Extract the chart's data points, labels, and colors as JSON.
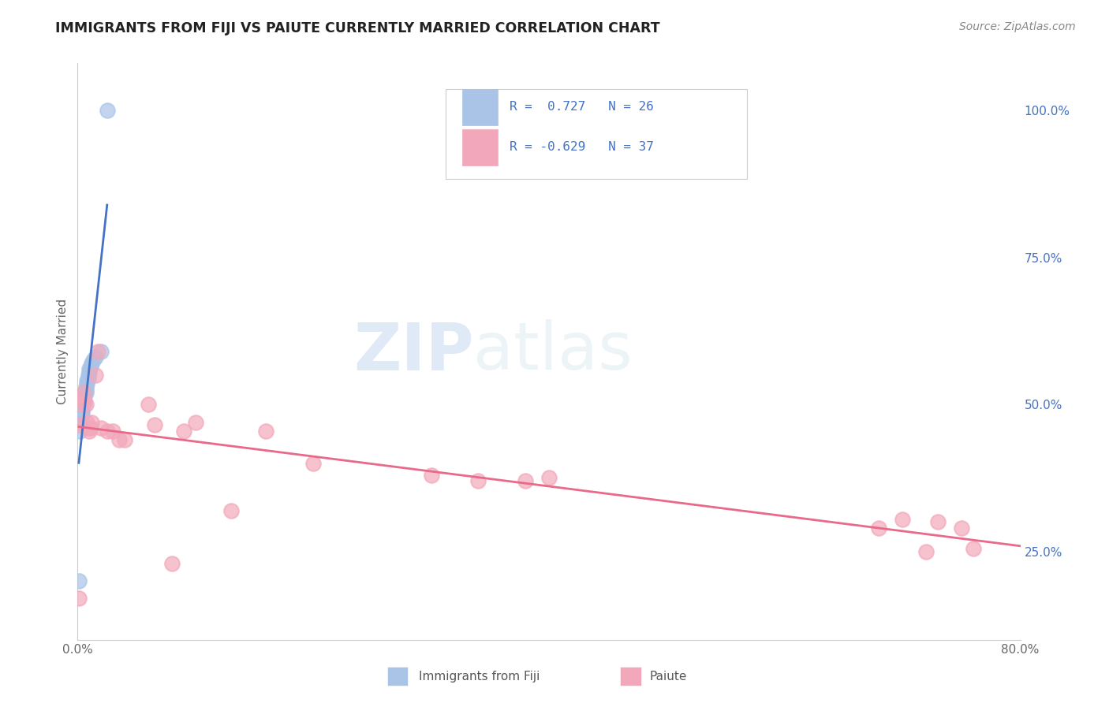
{
  "title": "IMMIGRANTS FROM FIJI VS PAIUTE CURRENTLY MARRIED CORRELATION CHART",
  "source_text": "Source: ZipAtlas.com",
  "ylabel": "Currently Married",
  "xlim": [
    0.0,
    0.8
  ],
  "ylim": [
    0.1,
    1.08
  ],
  "ytick_right_values": [
    0.25,
    0.5,
    0.75,
    1.0
  ],
  "ytick_right_labels": [
    "25.0%",
    "50.0%",
    "75.0%",
    "100.0%"
  ],
  "series_names": [
    "Immigrants from Fiji",
    "Paiute"
  ],
  "fiji_color": "#aac4e8",
  "paiute_color": "#f2a8ba",
  "fiji_line_color": "#4472c4",
  "paiute_line_color": "#e8698a",
  "background_color": "#ffffff",
  "grid_color": "#d8d8d8",
  "fiji_x": [
    0.001,
    0.002,
    0.003,
    0.003,
    0.004,
    0.004,
    0.005,
    0.005,
    0.005,
    0.006,
    0.006,
    0.007,
    0.007,
    0.007,
    0.008,
    0.008,
    0.009,
    0.009,
    0.01,
    0.01,
    0.011,
    0.012,
    0.013,
    0.015,
    0.02,
    0.025
  ],
  "fiji_y": [
    0.2,
    0.455,
    0.47,
    0.48,
    0.485,
    0.49,
    0.5,
    0.505,
    0.51,
    0.515,
    0.52,
    0.52,
    0.525,
    0.53,
    0.535,
    0.54,
    0.545,
    0.55,
    0.555,
    0.56,
    0.565,
    0.57,
    0.575,
    0.58,
    0.59,
    1.0
  ],
  "paiute_x": [
    0.001,
    0.002,
    0.003,
    0.004,
    0.005,
    0.006,
    0.007,
    0.008,
    0.009,
    0.01,
    0.011,
    0.012,
    0.015,
    0.017,
    0.02,
    0.025,
    0.03,
    0.035,
    0.04,
    0.06,
    0.065,
    0.08,
    0.09,
    0.1,
    0.13,
    0.16,
    0.2,
    0.3,
    0.34,
    0.38,
    0.4,
    0.68,
    0.7,
    0.72,
    0.73,
    0.75,
    0.76
  ],
  "paiute_y": [
    0.17,
    0.465,
    0.5,
    0.51,
    0.52,
    0.505,
    0.5,
    0.47,
    0.46,
    0.455,
    0.46,
    0.47,
    0.55,
    0.59,
    0.46,
    0.455,
    0.455,
    0.44,
    0.44,
    0.5,
    0.465,
    0.23,
    0.455,
    0.47,
    0.32,
    0.455,
    0.4,
    0.38,
    0.37,
    0.37,
    0.375,
    0.29,
    0.305,
    0.25,
    0.3,
    0.29,
    0.255
  ],
  "r_fiji": 0.727,
  "n_fiji": 26,
  "r_paiute": -0.629,
  "n_paiute": 37
}
